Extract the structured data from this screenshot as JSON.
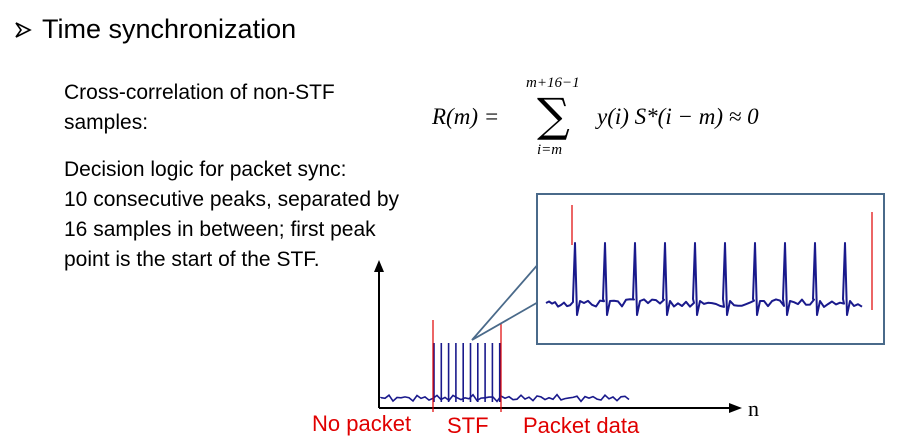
{
  "heading": {
    "text": "Time synchronization"
  },
  "cross_correlation_label": {
    "line1": "Cross-correlation of non-STF",
    "line2": "samples:"
  },
  "formula": {
    "lhs": "R(m) =",
    "upper_limit": "m+16−1",
    "sigma": "∑",
    "lower_limit": "i=m",
    "body": "y(i) S*(i − m) ≈ 0"
  },
  "decision_logic": {
    "lines": [
      "Decision logic for packet sync:",
      "10 consecutive peaks, separated by",
      "16 samples in between; first peak",
      "point is the start of the STF."
    ]
  },
  "plot": {
    "x_axis_label": "n",
    "region_labels": {
      "no_packet": "No packet",
      "stf": "STF",
      "packet_data": "Packet data"
    },
    "peak_count": 10,
    "colors": {
      "signal": "#1a1a8c",
      "marker": "#e00000",
      "zoom_border": "#4a6a8a"
    }
  }
}
